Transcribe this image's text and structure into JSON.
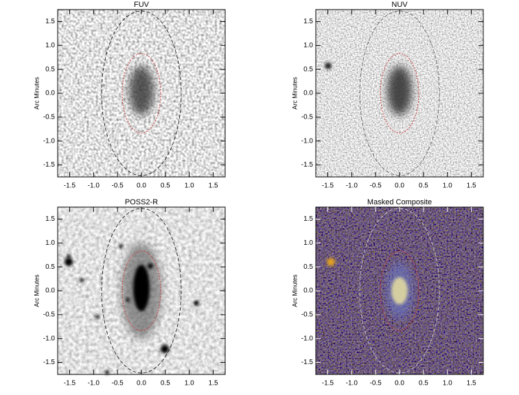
{
  "chart_data": [
    {
      "type": "image",
      "title": "FUV",
      "ylabel": "Arc Minutes",
      "xlim": [
        -1.75,
        1.75
      ],
      "ylim": [
        -1.75,
        1.75
      ],
      "xticks": [
        -1.5,
        {
          "value": -1,
          "label": "-1.0"
        },
        -0.5,
        {
          "value": 0,
          "label": "0.0"
        },
        0.5,
        {
          "value": 1,
          "label": "1.0"
        },
        1.5
      ],
      "yticks": [
        -1.5,
        {
          "value": -1,
          "label": "-1.0"
        },
        -0.5,
        {
          "value": 0,
          "label": "0.0"
        },
        0.5,
        {
          "value": 1,
          "label": "1.0"
        },
        1.5
      ]
    },
    {
      "type": "image",
      "title": "NUV",
      "ylabel": "Arc Minutes",
      "xlim": [
        -1.75,
        1.75
      ],
      "ylim": [
        -1.75,
        1.75
      ],
      "xticks": [
        -1.5,
        {
          "value": -1,
          "label": "-1.0"
        },
        -0.5,
        {
          "value": 0,
          "label": "0.0"
        },
        0.5,
        {
          "value": 1,
          "label": "1.0"
        },
        1.5
      ],
      "yticks": [
        -1.5,
        {
          "value": -1,
          "label": "-1.0"
        },
        -0.5,
        {
          "value": 0,
          "label": "0.0"
        },
        0.5,
        {
          "value": 1,
          "label": "1.0"
        },
        1.5
      ]
    },
    {
      "type": "image",
      "title": "POSS2-R",
      "ylabel": "Arc Minutes",
      "xlim": [
        -1.75,
        1.75
      ],
      "ylim": [
        -1.75,
        1.75
      ],
      "xticks": [
        -1.5,
        {
          "value": -1,
          "label": "-1.0"
        },
        -0.5,
        {
          "value": 0,
          "label": "0.0"
        },
        0.5,
        {
          "value": 1,
          "label": "1.0"
        },
        1.5
      ],
      "yticks": [
        -1.5,
        {
          "value": -1,
          "label": "-1.0"
        },
        -0.5,
        {
          "value": 0,
          "label": "0.0"
        },
        0.5,
        {
          "value": 1,
          "label": "1.0"
        },
        1.5
      ]
    },
    {
      "type": "image",
      "title": "Masked Composite",
      "ylabel": "Arc Minutes",
      "xlim": [
        -1.75,
        1.75
      ],
      "ylim": [
        -1.75,
        1.75
      ],
      "xticks": [
        -1.5,
        {
          "value": -1,
          "label": "-1.0"
        },
        -0.5,
        {
          "value": 0,
          "label": "0.0"
        },
        0.5,
        {
          "value": 1,
          "label": "1.0"
        },
        1.5
      ],
      "yticks": [
        -1.5,
        {
          "value": -1,
          "label": "-1.0"
        },
        -0.5,
        {
          "value": 0,
          "label": "0.0"
        },
        0.5,
        {
          "value": 1,
          "label": "1.0"
        },
        1.5
      ]
    }
  ]
}
